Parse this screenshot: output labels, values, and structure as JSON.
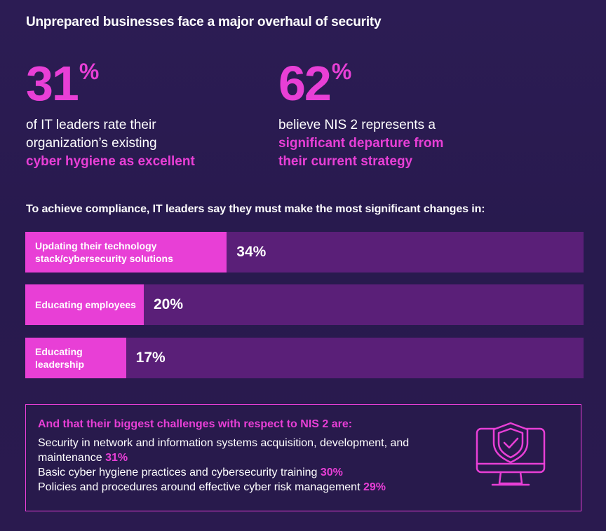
{
  "headline": "Unprepared businesses face a major overhaul of security",
  "stats": [
    {
      "value": "31",
      "unit": "%",
      "text_plain": "of IT leaders rate their organization’s existing",
      "text_highlight": "cyber hygiene as excellent"
    },
    {
      "value": "62",
      "unit": "%",
      "text_plain": "believe NIS 2 represents a",
      "text_highlight": "significant departure from their current strategy"
    }
  ],
  "subheading": "To achieve compliance, IT leaders say they must make the most significant changes in:",
  "chart_data": {
    "type": "bar",
    "orientation": "horizontal",
    "categories": [
      "Updating their technology stack/cybersecurity solutions",
      "Educating employees",
      "Educating leadership"
    ],
    "values": [
      34,
      20,
      17
    ],
    "value_labels": [
      "34%",
      "20%",
      "17%"
    ],
    "xlim": [
      0,
      100
    ],
    "grid": false
  },
  "challenges": {
    "title": "And that their biggest challenges with respect to NIS 2 are:",
    "items": [
      {
        "text": "Security in network and information systems acquisition, development, and maintenance",
        "pct": "31%"
      },
      {
        "text": "Basic cyber hygiene practices and cybersecurity training",
        "pct": "30%"
      },
      {
        "text": "Policies and procedures around effective cyber risk management",
        "pct": "29%"
      }
    ],
    "icon": "monitor-shield-check-icon"
  },
  "colors": {
    "accent": "#e83fd6",
    "bar_track": "#5a1f78",
    "background": "#2a1a4f",
    "text": "#ffffff"
  }
}
